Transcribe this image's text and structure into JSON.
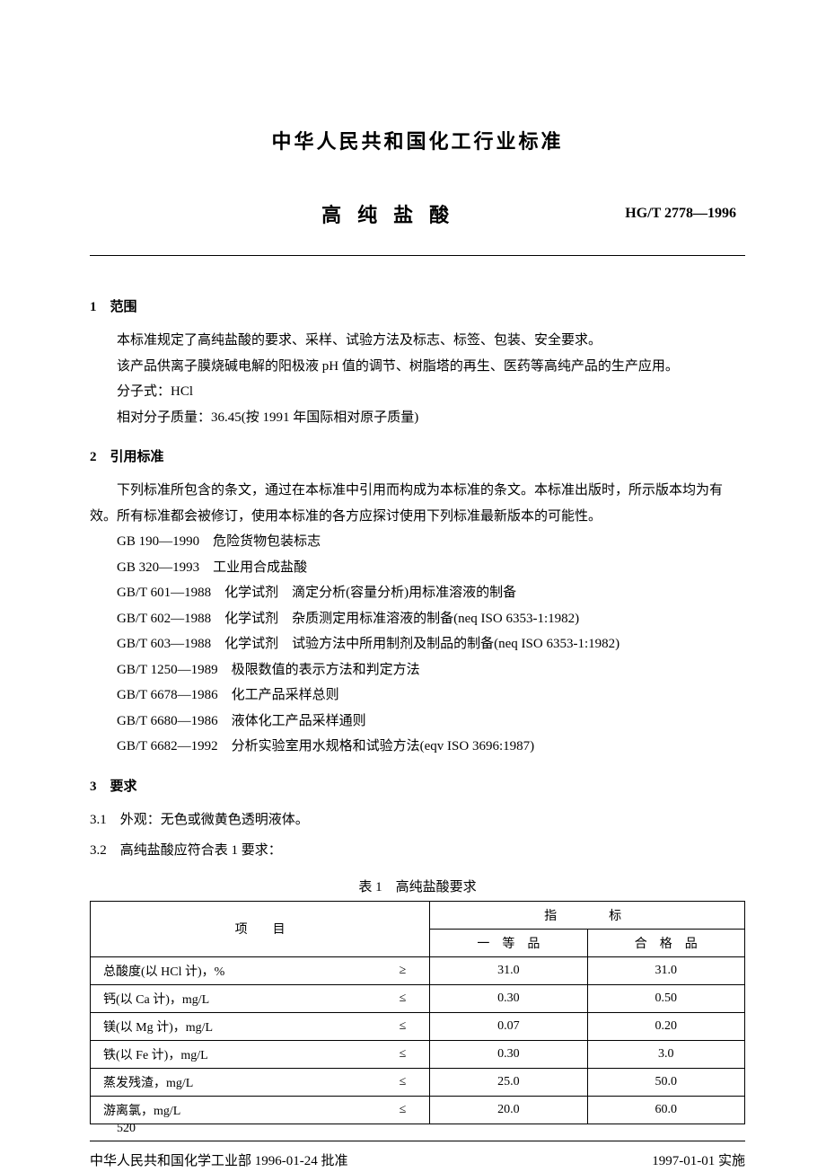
{
  "header": {
    "title": "中华人民共和国化工行业标准",
    "subtitle": "高纯盐酸",
    "code": "HG/T 2778—1996"
  },
  "sections": {
    "s1": {
      "heading": "1　范围",
      "p1": "本标准规定了高纯盐酸的要求、采样、试验方法及标志、标签、包装、安全要求。",
      "p2": "该产品供离子膜烧碱电解的阳极液 pH 值的调节、树脂塔的再生、医药等高纯产品的生产应用。",
      "p3": "分子式：HCl",
      "p4": "相对分子质量：36.45(按 1991 年国际相对原子质量)"
    },
    "s2": {
      "heading": "2　引用标准",
      "intro": "下列标准所包含的条文，通过在本标准中引用而构成为本标准的条文。本标准出版时，所示版本均为有效。所有标准都会被修订，使用本标准的各方应探讨使用下列标准最新版本的可能性。",
      "r1": "GB 190—1990　危险货物包装标志",
      "r2": "GB 320—1993　工业用合成盐酸",
      "r3": "GB/T 601—1988　化学试剂　滴定分析(容量分析)用标准溶液的制备",
      "r4": "GB/T 602—1988　化学试剂　杂质测定用标准溶液的制备(neq ISO 6353-1:1982)",
      "r5": "GB/T 603—1988　化学试剂　试验方法中所用制剂及制品的制备(neq ISO 6353-1:1982)",
      "r6": "GB/T 1250—1989　极限数值的表示方法和判定方法",
      "r7": "GB/T 6678—1986　化工产品采样总则",
      "r8": "GB/T 6680—1986　液体化工产品采样通则",
      "r9": "GB/T 6682—1992　分析实验室用水规格和试验方法(eqv ISO 3696:1987)"
    },
    "s3": {
      "heading": "3　要求",
      "s31": "3.1　外观：无色或微黄色透明液体。",
      "s32": "3.2　高纯盐酸应符合表 1 要求："
    }
  },
  "table": {
    "caption": "表 1　高纯盐酸要求",
    "col_item": "项　　目",
    "col_spec": "指　　标",
    "col_grade1": "一　等　品",
    "col_grade2": "合　格　品",
    "rows": [
      {
        "item": "总酸度(以 HCl 计)，%",
        "op": "≥",
        "g1": "31.0",
        "g2": "31.0"
      },
      {
        "item": "钙(以 Ca 计)，mg/L",
        "op": "≤",
        "g1": "0.30",
        "g2": "0.50"
      },
      {
        "item": "镁(以 Mg 计)，mg/L",
        "op": "≤",
        "g1": "0.07",
        "g2": "0.20"
      },
      {
        "item": "铁(以 Fe 计)，mg/L",
        "op": "≤",
        "g1": "0.30",
        "g2": "3.0"
      },
      {
        "item": "蒸发残渣，mg/L",
        "op": "≤",
        "g1": "25.0",
        "g2": "50.0"
      },
      {
        "item": "游离氯，mg/L",
        "op": "≤",
        "g1": "20.0",
        "g2": "60.0"
      }
    ]
  },
  "footer": {
    "approval": "中华人民共和国化学工业部 1996-01-24 批准",
    "effective": "1997-01-01 实施",
    "page": "520"
  }
}
